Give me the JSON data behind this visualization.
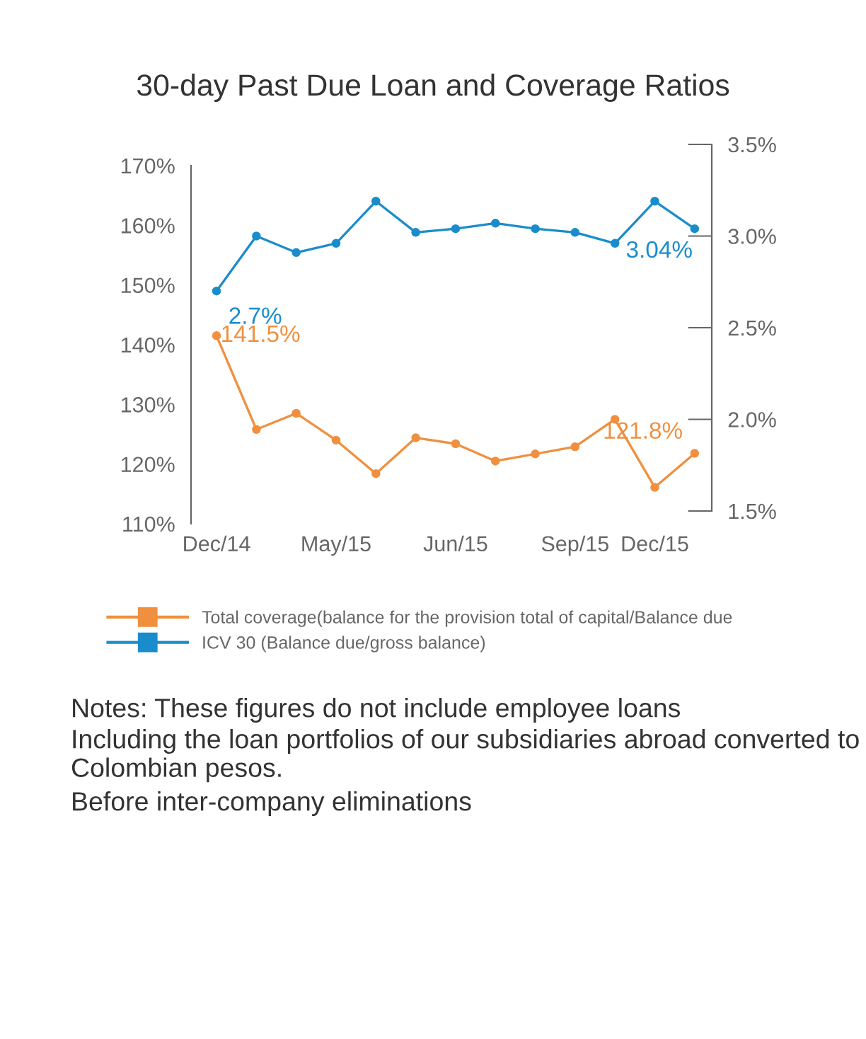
{
  "chart_data": {
    "type": "line",
    "title": "30-day Past Due Loan and Coverage Ratios",
    "categories": [
      "Dec/14",
      null,
      null,
      "May/15",
      null,
      null,
      "Jun/15",
      null,
      null,
      "Sep/15",
      null,
      "Dec/15",
      null
    ],
    "ylim": [
      110,
      170
    ],
    "yticks": [
      {
        "value": 110,
        "label": "110%"
      },
      {
        "value": 120,
        "label": "120%"
      },
      {
        "value": 130,
        "label": "130%"
      },
      {
        "value": 140,
        "label": "140%"
      },
      {
        "value": 150,
        "label": "150%"
      },
      {
        "value": 160,
        "label": "160%"
      },
      {
        "value": 170,
        "label": "170%"
      }
    ],
    "y2lim": [
      1.5,
      3.5
    ],
    "y2ticks": [
      {
        "value": 1.5,
        "label": "1.5%"
      },
      {
        "value": 2.0,
        "label": "2.0%"
      },
      {
        "value": 2.5,
        "label": "2.5%"
      },
      {
        "value": 3.0,
        "label": "3.0%"
      },
      {
        "value": 3.5,
        "label": "3.5%"
      }
    ],
    "series": [
      {
        "name": "Total coverage(balance for the provision total of capital/Balance due",
        "color": "#f0903f",
        "axis": "y",
        "values": [
          141.5,
          125.8,
          128.5,
          124.0,
          118.4,
          124.4,
          123.4,
          120.5,
          121.7,
          122.9,
          127.5,
          116.1,
          121.8
        ],
        "value_labels": [
          "141.5%",
          null,
          null,
          null,
          null,
          null,
          null,
          null,
          null,
          null,
          null,
          null,
          "121.8%"
        ]
      },
      {
        "name": "ICV 30 (Balance due/gross balance)",
        "color": "#1a8ccc",
        "axis": "y2",
        "values": [
          2.7,
          3.0,
          2.91,
          2.96,
          3.19,
          3.02,
          3.04,
          3.07,
          3.04,
          3.02,
          2.96,
          3.19,
          3.04
        ],
        "value_labels": [
          "2.7%",
          null,
          null,
          null,
          null,
          null,
          null,
          null,
          null,
          null,
          null,
          null,
          "3.04%"
        ]
      }
    ],
    "marker": "circle",
    "line_style": "solid",
    "grid": false,
    "legend": "bottom",
    "annotations": [
      "Notes: These figures do not include employee loans",
      "Including the loan portfolios of our subsidiaries abroad converted to Colombian pesos.",
      "Before inter-company eliminations"
    ]
  }
}
